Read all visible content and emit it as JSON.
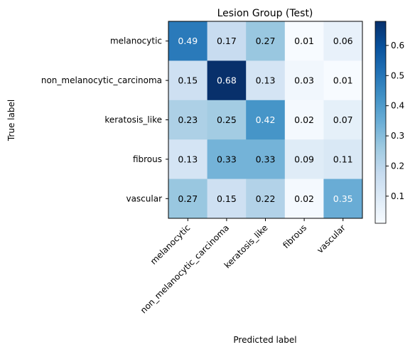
{
  "chart_data": {
    "type": "heatmap",
    "title": "Lesion Group (Test)",
    "xlabel": "Predicted label",
    "ylabel": "True label",
    "row_labels": [
      "melanocytic",
      "non_melanocytic_carcinoma",
      "keratosis_like",
      "fibrous",
      "vascular"
    ],
    "col_labels": [
      "melanocytic",
      "non_melanocytic_carcinoma",
      "keratosis_like",
      "fibrous",
      "vascular"
    ],
    "values": [
      [
        0.49,
        0.17,
        0.27,
        0.01,
        0.06
      ],
      [
        0.15,
        0.68,
        0.13,
        0.03,
        0.01
      ],
      [
        0.23,
        0.25,
        0.42,
        0.02,
        0.07
      ],
      [
        0.13,
        0.33,
        0.33,
        0.09,
        0.11
      ],
      [
        0.27,
        0.15,
        0.22,
        0.02,
        0.35
      ]
    ],
    "cell_text": [
      [
        "0.49",
        "0.17",
        "0.27",
        "0.01",
        "0.06"
      ],
      [
        "0.15",
        "0.68",
        "0.13",
        "0.03",
        "0.01"
      ],
      [
        "0.23",
        "0.25",
        "0.42",
        "0.02",
        "0.07"
      ],
      [
        "0.13",
        "0.33",
        "0.33",
        "0.09",
        "0.11"
      ],
      [
        "0.27",
        "0.15",
        "0.22",
        "0.02",
        "0.35"
      ]
    ],
    "colormap": "Blues",
    "vmin": 0.01,
    "vmax": 0.68,
    "colorbar_ticks": [
      0.1,
      0.2,
      0.3,
      0.4,
      0.5,
      0.6
    ],
    "colorbar_tick_labels": [
      "0.1",
      "0.2",
      "0.3",
      "0.4",
      "0.5",
      "0.6"
    ]
  }
}
